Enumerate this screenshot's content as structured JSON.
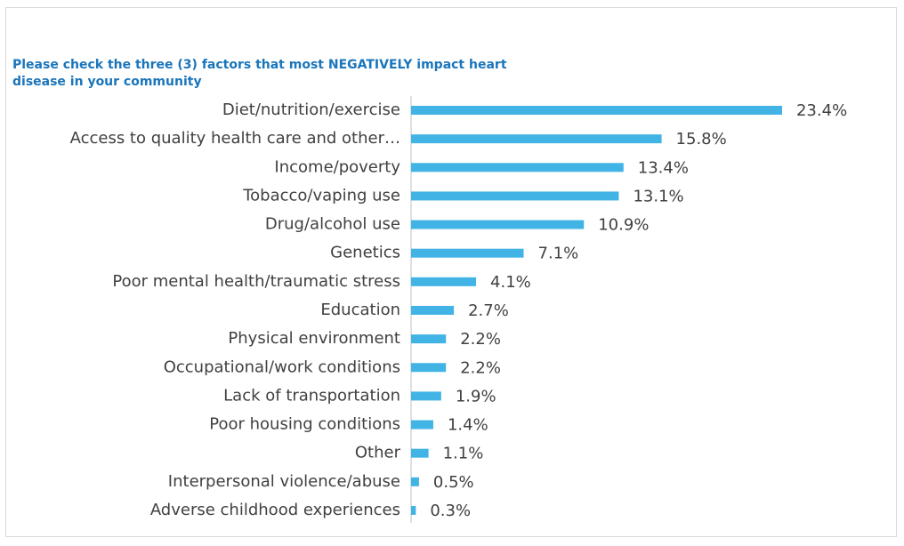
{
  "chart_data": {
    "type": "bar",
    "orientation": "horizontal",
    "title": "Please check the three (3) factors that most NEGATIVELY impact heart disease in your community",
    "categories": [
      "Diet/nutrition/exercise",
      "Access to quality health care and other…",
      "Income/poverty",
      "Tobacco/vaping use",
      "Drug/alcohol use",
      "Genetics",
      "Poor mental health/traumatic stress",
      "Education",
      "Physical environment",
      "Occupational/work conditions",
      "Lack of transportation",
      "Poor housing conditions",
      "Other",
      "Interpersonal violence/abuse",
      "Adverse childhood experiences"
    ],
    "values": [
      23.4,
      15.8,
      13.4,
      13.1,
      10.9,
      7.1,
      4.1,
      2.7,
      2.2,
      2.2,
      1.9,
      1.4,
      1.1,
      0.5,
      0.3
    ],
    "value_labels": [
      "23.4%",
      "15.8%",
      "13.4%",
      "13.1%",
      "10.9%",
      "7.1%",
      "4.1%",
      "2.7%",
      "2.2%",
      "2.2%",
      "1.9%",
      "1.4%",
      "1.1%",
      "0.5%",
      "0.3%"
    ],
    "color": "#41b4e5"
  }
}
